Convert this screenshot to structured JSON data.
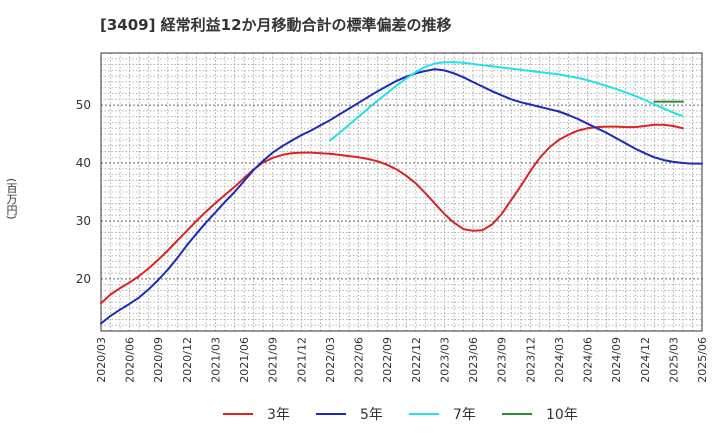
{
  "title": "[3409]  経常利益12か月移動合計の標準偏差の推移",
  "y_unit": "(百万円)",
  "chart_data": {
    "type": "line",
    "title": "[3409]  経常利益12か月移動合計の標準偏差の推移",
    "ylabel": "(百万円)",
    "xlabel": "",
    "x_tick_labels": [
      "2020/03",
      "2020/06",
      "2020/09",
      "2020/12",
      "2021/03",
      "2021/06",
      "2021/09",
      "2021/12",
      "2022/03",
      "2022/06",
      "2022/09",
      "2022/12",
      "2023/03",
      "2023/06",
      "2023/09",
      "2023/12",
      "2024/03",
      "2024/06",
      "2024/09",
      "2024/12",
      "2025/03",
      "2025/06"
    ],
    "y_ticks": [
      20,
      30,
      40,
      50
    ],
    "ylim": [
      11,
      59
    ],
    "grid": true,
    "legend_position": "bottom",
    "series": [
      {
        "name": "3年",
        "color": "#dd2222",
        "points": [
          [
            "2020/03",
            15.8
          ],
          [
            "2020/04",
            17.3
          ],
          [
            "2020/05",
            18.4
          ],
          [
            "2020/06",
            19.4
          ],
          [
            "2020/07",
            20.5
          ],
          [
            "2020/08",
            21.8
          ],
          [
            "2020/09",
            23.3
          ],
          [
            "2020/10",
            24.9
          ],
          [
            "2020/11",
            26.6
          ],
          [
            "2020/12",
            28.3
          ],
          [
            "2021/01",
            30.0
          ],
          [
            "2021/02",
            31.6
          ],
          [
            "2021/03",
            33.1
          ],
          [
            "2021/04",
            34.5
          ],
          [
            "2021/05",
            35.9
          ],
          [
            "2021/06",
            37.4
          ],
          [
            "2021/07",
            38.9
          ],
          [
            "2021/08",
            40.1
          ],
          [
            "2021/09",
            40.9
          ],
          [
            "2021/10",
            41.4
          ],
          [
            "2021/11",
            41.7
          ],
          [
            "2021/12",
            41.8
          ],
          [
            "2022/01",
            41.8
          ],
          [
            "2022/02",
            41.7
          ],
          [
            "2022/03",
            41.6
          ],
          [
            "2022/04",
            41.4
          ],
          [
            "2022/05",
            41.2
          ],
          [
            "2022/06",
            41.0
          ],
          [
            "2022/07",
            40.7
          ],
          [
            "2022/08",
            40.3
          ],
          [
            "2022/09",
            39.7
          ],
          [
            "2022/10",
            38.9
          ],
          [
            "2022/11",
            37.8
          ],
          [
            "2022/12",
            36.5
          ],
          [
            "2023/01",
            34.8
          ],
          [
            "2023/02",
            33.0
          ],
          [
            "2023/03",
            31.2
          ],
          [
            "2023/04",
            29.7
          ],
          [
            "2023/05",
            28.6
          ],
          [
            "2023/06",
            28.3
          ],
          [
            "2023/07",
            28.4
          ],
          [
            "2023/08",
            29.4
          ],
          [
            "2023/09",
            31.2
          ],
          [
            "2023/10",
            33.6
          ],
          [
            "2023/11",
            36.0
          ],
          [
            "2023/12",
            38.6
          ],
          [
            "2024/01",
            40.9
          ],
          [
            "2024/02",
            42.7
          ],
          [
            "2024/03",
            44.0
          ],
          [
            "2024/04",
            44.9
          ],
          [
            "2024/05",
            45.6
          ],
          [
            "2024/06",
            46.0
          ],
          [
            "2024/07",
            46.2
          ],
          [
            "2024/08",
            46.3
          ],
          [
            "2024/09",
            46.3
          ],
          [
            "2024/10",
            46.2
          ],
          [
            "2024/11",
            46.2
          ],
          [
            "2024/12",
            46.4
          ],
          [
            "2025/01",
            46.6
          ],
          [
            "2025/02",
            46.6
          ],
          [
            "2025/03",
            46.4
          ],
          [
            "2025/04",
            46.0
          ]
        ]
      },
      {
        "name": "5年",
        "color": "#1c2bb8",
        "points": [
          [
            "2020/03",
            12.3
          ],
          [
            "2020/04",
            13.6
          ],
          [
            "2020/05",
            14.7
          ],
          [
            "2020/06",
            15.7
          ],
          [
            "2020/07",
            16.8
          ],
          [
            "2020/08",
            18.2
          ],
          [
            "2020/09",
            19.8
          ],
          [
            "2020/10",
            21.6
          ],
          [
            "2020/11",
            23.6
          ],
          [
            "2020/12",
            25.8
          ],
          [
            "2021/01",
            27.8
          ],
          [
            "2021/02",
            29.7
          ],
          [
            "2021/03",
            31.5
          ],
          [
            "2021/04",
            33.3
          ],
          [
            "2021/05",
            35.0
          ],
          [
            "2021/06",
            36.9
          ],
          [
            "2021/07",
            38.8
          ],
          [
            "2021/08",
            40.4
          ],
          [
            "2021/09",
            41.8
          ],
          [
            "2021/10",
            42.9
          ],
          [
            "2021/11",
            43.9
          ],
          [
            "2021/12",
            44.8
          ],
          [
            "2022/01",
            45.6
          ],
          [
            "2022/02",
            46.5
          ],
          [
            "2022/03",
            47.4
          ],
          [
            "2022/04",
            48.4
          ],
          [
            "2022/05",
            49.4
          ],
          [
            "2022/06",
            50.4
          ],
          [
            "2022/07",
            51.4
          ],
          [
            "2022/08",
            52.4
          ],
          [
            "2022/09",
            53.3
          ],
          [
            "2022/10",
            54.2
          ],
          [
            "2022/11",
            54.9
          ],
          [
            "2022/12",
            55.5
          ],
          [
            "2023/01",
            55.9
          ],
          [
            "2023/02",
            56.2
          ],
          [
            "2023/03",
            56.0
          ],
          [
            "2023/04",
            55.5
          ],
          [
            "2023/05",
            54.8
          ],
          [
            "2023/06",
            54.0
          ],
          [
            "2023/07",
            53.2
          ],
          [
            "2023/08",
            52.4
          ],
          [
            "2023/09",
            51.7
          ],
          [
            "2023/10",
            51.0
          ],
          [
            "2023/11",
            50.5
          ],
          [
            "2023/12",
            50.1
          ],
          [
            "2024/01",
            49.7
          ],
          [
            "2024/02",
            49.3
          ],
          [
            "2024/03",
            48.9
          ],
          [
            "2024/04",
            48.3
          ],
          [
            "2024/05",
            47.6
          ],
          [
            "2024/06",
            46.8
          ],
          [
            "2024/07",
            46.0
          ],
          [
            "2024/08",
            45.2
          ],
          [
            "2024/09",
            44.3
          ],
          [
            "2024/10",
            43.4
          ],
          [
            "2024/11",
            42.5
          ],
          [
            "2024/12",
            41.7
          ],
          [
            "2025/01",
            41.0
          ],
          [
            "2025/02",
            40.5
          ],
          [
            "2025/03",
            40.2
          ],
          [
            "2025/04",
            40.0
          ],
          [
            "2025/05",
            39.9
          ],
          [
            "2025/06",
            39.9
          ]
        ]
      },
      {
        "name": "7年",
        "color": "#22e1e8",
        "points": [
          [
            "2022/03",
            43.9
          ],
          [
            "2022/04",
            45.2
          ],
          [
            "2022/05",
            46.6
          ],
          [
            "2022/06",
            48.0
          ],
          [
            "2022/07",
            49.4
          ],
          [
            "2022/08",
            50.8
          ],
          [
            "2022/09",
            52.1
          ],
          [
            "2022/10",
            53.4
          ],
          [
            "2022/11",
            54.6
          ],
          [
            "2022/12",
            55.7
          ],
          [
            "2023/01",
            56.6
          ],
          [
            "2023/02",
            57.2
          ],
          [
            "2023/03",
            57.4
          ],
          [
            "2023/04",
            57.4
          ],
          [
            "2023/05",
            57.3
          ],
          [
            "2023/06",
            57.1
          ],
          [
            "2023/07",
            56.9
          ],
          [
            "2023/08",
            56.7
          ],
          [
            "2023/09",
            56.5
          ],
          [
            "2023/10",
            56.3
          ],
          [
            "2023/11",
            56.1
          ],
          [
            "2023/12",
            55.9
          ],
          [
            "2024/01",
            55.7
          ],
          [
            "2024/02",
            55.5
          ],
          [
            "2024/03",
            55.3
          ],
          [
            "2024/04",
            55.0
          ],
          [
            "2024/05",
            54.7
          ],
          [
            "2024/06",
            54.3
          ],
          [
            "2024/07",
            53.8
          ],
          [
            "2024/08",
            53.3
          ],
          [
            "2024/09",
            52.8
          ],
          [
            "2024/10",
            52.2
          ],
          [
            "2024/11",
            51.6
          ],
          [
            "2024/12",
            50.9
          ],
          [
            "2025/01",
            50.1
          ],
          [
            "2025/02",
            49.4
          ],
          [
            "2025/03",
            48.7
          ],
          [
            "2025/04",
            48.1
          ]
        ]
      },
      {
        "name": "10年",
        "color": "#2e8b2e",
        "points": [
          [
            "2025/01",
            50.6
          ],
          [
            "2025/02",
            50.6
          ],
          [
            "2025/03",
            50.6
          ],
          [
            "2025/04",
            50.6
          ]
        ]
      }
    ]
  }
}
